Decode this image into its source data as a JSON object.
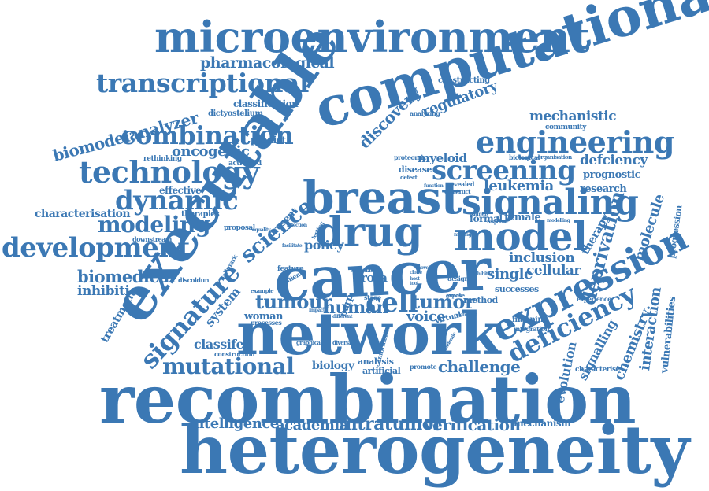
{
  "word_color": "#3b78b4",
  "background": "#ffffff",
  "words": [
    "microenvironment",
    "computational",
    "executable",
    "transcriptional",
    "pharmacological",
    "biomodelanalyzer",
    "combination",
    "technology",
    "dynamic",
    "modeling",
    "development",
    "characterisation",
    "biomedical",
    "inhibition",
    "treatment",
    "signature",
    "science",
    "breast",
    "drug",
    "model",
    "cancer",
    "network",
    "signaling",
    "screening",
    "engineering",
    "expression",
    "deficiency",
    "recombination",
    "heterogeneity",
    "intratumor",
    "academia",
    "intelligence",
    "verification",
    "mechanism",
    "tumour",
    "cell",
    "tumor",
    "human",
    "woman",
    "voice",
    "mutational",
    "classifer",
    "biology",
    "challenge",
    "signalling",
    "evolution",
    "deprivation",
    "molecule",
    "progression",
    "interaction",
    "chemistry",
    "vulnerabilities",
    "single",
    "cellular",
    "inclusion",
    "leukemia",
    "research",
    "prognostic",
    "defciency",
    "mechanistic",
    "community",
    "regulatory",
    "discovery",
    "oncogenic",
    "effective",
    "therapies",
    "predict",
    "activated",
    "rethinking",
    "dictyostelium",
    "classification",
    "myeloid",
    "disease",
    "female",
    "policy",
    "system",
    "therapy",
    "mapping",
    "integration",
    "experience",
    "characterise",
    "artificial",
    "analysis",
    "promote",
    "construction",
    "graphical",
    "diversity",
    "information",
    "present",
    "proposal",
    "downstream",
    "discoldun",
    "hallmark",
    "example",
    "processes",
    "successes",
    "method",
    "design",
    "expose",
    "virtual",
    "parp",
    "rora",
    "stage",
    "biological",
    "organisation",
    "constructing",
    "analyzing",
    "revealed",
    "construct",
    "proteomic",
    "defect",
    "formal",
    "response",
    "modelling",
    "pathway",
    "inhibitor",
    "feature",
    "patient",
    "facilitate",
    "testing",
    "infection",
    "equality",
    "making",
    "impact",
    "deficient",
    "different",
    "growth",
    "pandemic",
    "novel",
    "clone",
    "host",
    "tool",
    "scale",
    "data",
    "function"
  ]
}
